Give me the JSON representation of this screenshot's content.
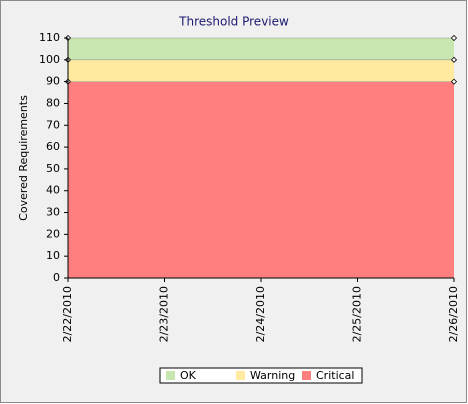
{
  "chart_data": {
    "type": "stacked-area",
    "title": "Threshold Preview",
    "y_label": "Covered Requirements",
    "categories": [
      "2/22/2010",
      "2/23/2010",
      "2/24/2010",
      "2/25/2010",
      "2/26/2010"
    ],
    "series": [
      {
        "name": "OK",
        "color": "#c8e6b0",
        "values": [
          10,
          10,
          10,
          10,
          10
        ]
      },
      {
        "name": "Warning",
        "color": "#ffeaa0",
        "values": [
          10,
          10,
          10,
          10,
          10
        ]
      },
      {
        "name": "Critical",
        "color": "#ff7f7f",
        "values": [
          90,
          90,
          90,
          90,
          90
        ]
      }
    ],
    "ylim": [
      0,
      110
    ],
    "yticks": [
      0,
      10,
      20,
      30,
      40,
      50,
      60,
      70,
      80,
      90,
      100,
      110
    ],
    "grid": false
  }
}
